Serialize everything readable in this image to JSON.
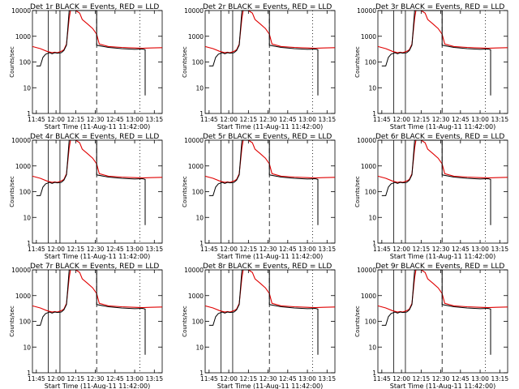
{
  "colors": {
    "events": "#000000",
    "lld": "#e00000",
    "axis": "#000000"
  },
  "shared": {
    "type": "line",
    "xlabel": "Start Time (11-Aug-11 11:42:00)",
    "ylabel": "Counts/sec",
    "x_ticks": [
      "11:45",
      "12:00",
      "12:15",
      "12:30",
      "12:45",
      "13:00",
      "13:15"
    ],
    "y_ticks": [
      "1",
      "10",
      "100",
      "1000",
      "10000"
    ],
    "y_scale": "log",
    "ylim": [
      1,
      10000
    ],
    "xlim_minutes_after_11_42": [
      0,
      99
    ]
  },
  "chart_data": [
    {
      "title": "Det 1r BLACK = Events, RED = LLD"
    },
    {
      "title": "Det 2r BLACK = Events, RED = LLD"
    },
    {
      "title": "Det 3r BLACK = Events, RED = LLD"
    },
    {
      "title": "Det 4r BLACK = Events, RED = LLD"
    },
    {
      "title": "Det 5r BLACK = Events, RED = LLD"
    },
    {
      "title": "Det 6r BLACK = Events, RED = LLD"
    },
    {
      "title": "Det 7r BLACK = Events, RED = LLD"
    },
    {
      "title": "Det 8r BLACK = Events, RED = LLD"
    },
    {
      "title": "Det 9r BLACK = Events, RED = LLD"
    }
  ],
  "series_template": {
    "lld": {
      "name": "LLD",
      "x": [
        "11:42",
        "11:48",
        "11:53",
        "11:57",
        "11:59",
        "12:01",
        "12:04",
        "12:06",
        "12:08",
        "12:09",
        "12:10",
        "12:11",
        "12:13",
        "12:15",
        "12:18",
        "12:20",
        "12:24",
        "12:28",
        "12:31",
        "12:33",
        "12:40",
        "12:50",
        "13:00",
        "13:06",
        "13:12",
        "13:21"
      ],
      "y": [
        400,
        330,
        260,
        230,
        240,
        230,
        260,
        300,
        500,
        1500,
        5000,
        10000,
        10000,
        10000,
        8000,
        4500,
        3000,
        2000,
        1200,
        500,
        400,
        370,
        350,
        340,
        350,
        360
      ]
    },
    "events": {
      "name": "Events",
      "x": [
        "11:45",
        "11:48",
        "11:50",
        "11:52",
        "11:55",
        "11:57",
        "11:59",
        "12:01",
        "12:04",
        "12:06",
        "12:08",
        "12:10",
        "12:31",
        "12:31",
        "12:40",
        "12:50",
        "13:00",
        "13:06",
        "13:08",
        "13:08"
      ],
      "y": [
        70,
        70,
        150,
        200,
        230,
        210,
        230,
        220,
        230,
        280,
        450,
        10000,
        10000,
        450,
        370,
        330,
        310,
        320,
        300,
        5
      ]
    }
  }
}
